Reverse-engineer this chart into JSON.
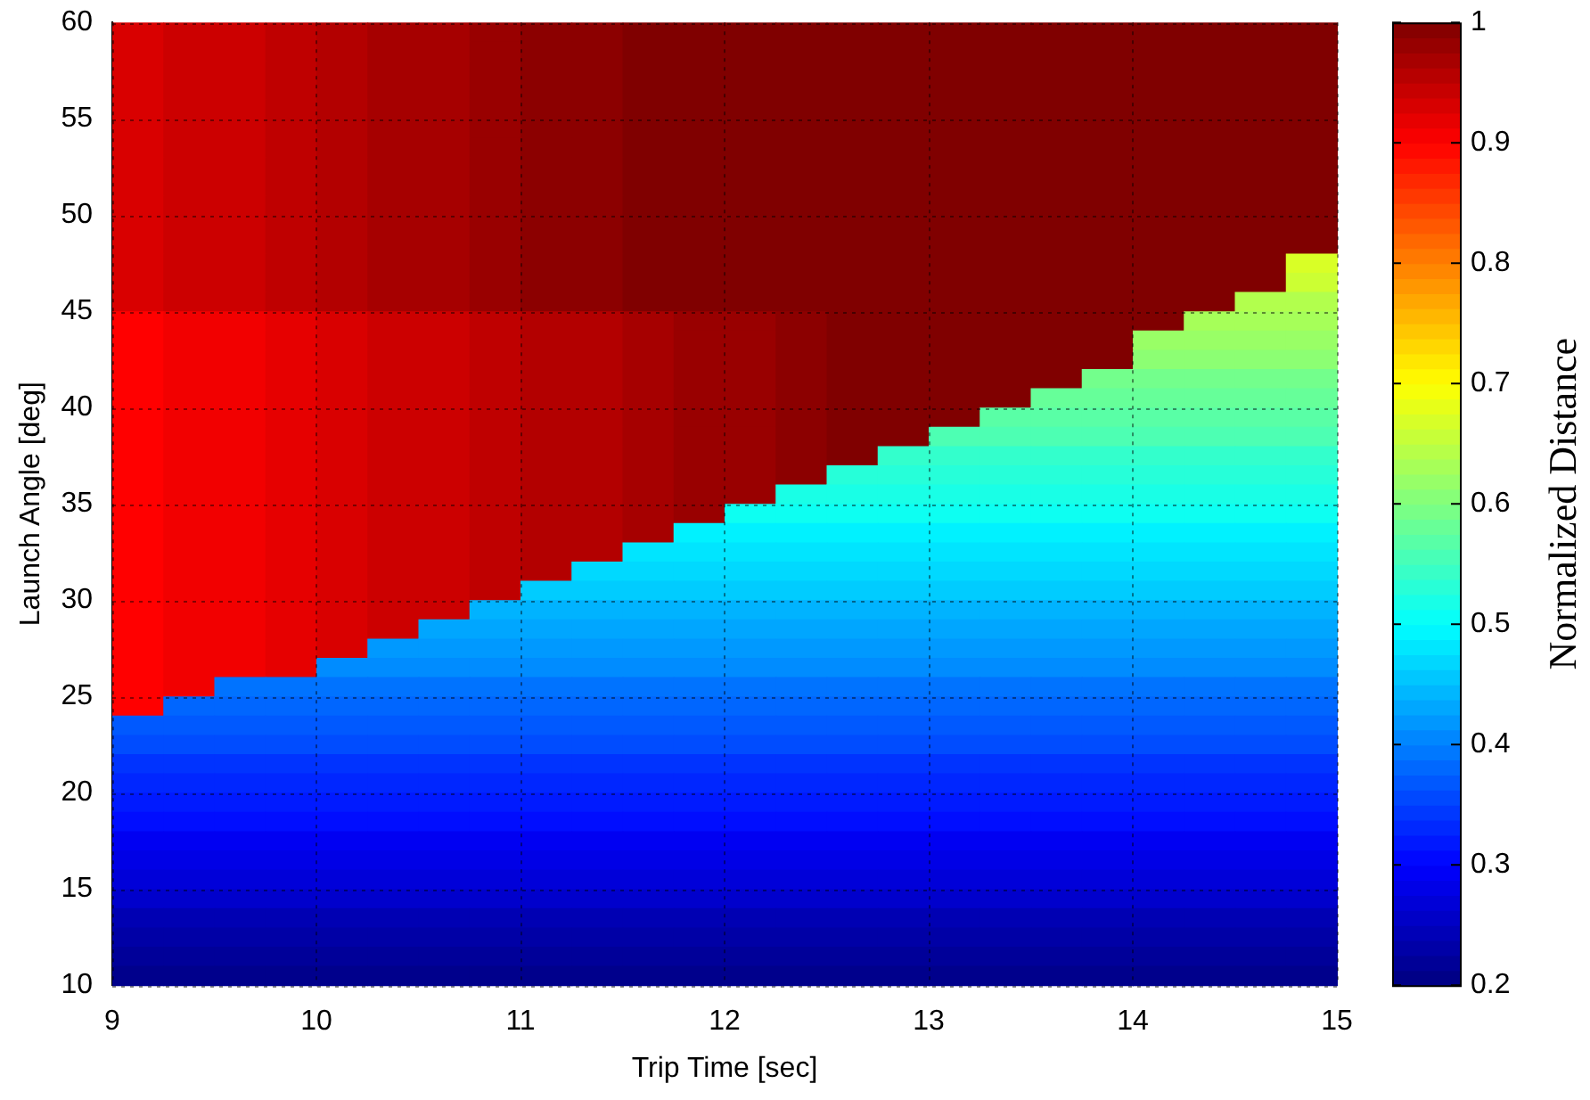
{
  "chart_data": {
    "type": "heatmap",
    "xlabel": "Trip Time [sec]",
    "ylabel": "Launch Angle [deg]",
    "clabel": "Normalized Distance",
    "x": [
      9.125,
      9.375,
      9.625,
      9.875,
      10.125,
      10.375,
      10.625,
      10.875,
      11.125,
      11.375,
      11.625,
      11.875,
      12.125,
      12.375,
      12.625,
      12.875,
      13.125,
      13.375,
      13.625,
      13.875,
      14.125,
      14.375,
      14.625,
      14.875
    ],
    "y": [
      59.5,
      58.5,
      57.5,
      56.5,
      55.5,
      54.5,
      53.5,
      52.5,
      51.5,
      50.5,
      49.5,
      48.5,
      47.5,
      46.5,
      45.5,
      44.5,
      43.5,
      42.5,
      41.5,
      40.5,
      39.5,
      38.5,
      37.5,
      36.5,
      35.5,
      34.5,
      33.5,
      32.5,
      31.5,
      30.5,
      29.5,
      28.5,
      27.5,
      26.5,
      25.5,
      24.5,
      23.5,
      22.5,
      21.5,
      20.5,
      19.5,
      18.5,
      17.5,
      16.5,
      15.5,
      14.5,
      13.5,
      12.5,
      11.5,
      10.5
    ],
    "cells": [
      [
        0.93,
        0.94,
        0.94,
        0.95,
        0.96,
        0.97,
        0.97,
        0.98,
        0.99,
        0.99,
        1,
        1,
        1,
        1,
        1,
        1,
        1,
        1,
        1,
        1,
        1,
        1,
        1,
        1
      ],
      [
        0.93,
        0.94,
        0.94,
        0.95,
        0.96,
        0.97,
        0.97,
        0.98,
        0.99,
        0.99,
        1,
        1,
        1,
        1,
        1,
        1,
        1,
        1,
        1,
        1,
        1,
        1,
        1,
        1
      ],
      [
        0.93,
        0.94,
        0.94,
        0.95,
        0.96,
        0.97,
        0.97,
        0.98,
        0.99,
        0.99,
        1,
        1,
        1,
        1,
        1,
        1,
        1,
        1,
        1,
        1,
        1,
        1,
        1,
        1
      ],
      [
        0.93,
        0.94,
        0.94,
        0.95,
        0.96,
        0.97,
        0.97,
        0.98,
        0.99,
        0.99,
        1,
        1,
        1,
        1,
        1,
        1,
        1,
        1,
        1,
        1,
        1,
        1,
        1,
        1
      ],
      [
        0.93,
        0.94,
        0.94,
        0.95,
        0.96,
        0.97,
        0.97,
        0.98,
        0.99,
        0.99,
        1,
        1,
        1,
        1,
        1,
        1,
        1,
        1,
        1,
        1,
        1,
        1,
        1,
        1
      ],
      [
        0.93,
        0.94,
        0.94,
        0.95,
        0.96,
        0.97,
        0.97,
        0.98,
        0.99,
        0.99,
        1,
        1,
        1,
        1,
        1,
        1,
        1,
        1,
        1,
        1,
        1,
        1,
        1,
        1
      ],
      [
        0.93,
        0.94,
        0.94,
        0.95,
        0.96,
        0.97,
        0.97,
        0.98,
        0.99,
        0.99,
        1,
        1,
        1,
        1,
        1,
        1,
        1,
        1,
        1,
        1,
        1,
        1,
        1,
        1
      ],
      [
        0.93,
        0.94,
        0.94,
        0.95,
        0.96,
        0.97,
        0.97,
        0.98,
        0.99,
        0.99,
        1,
        1,
        1,
        1,
        1,
        1,
        1,
        1,
        1,
        1,
        1,
        1,
        1,
        1
      ],
      [
        0.93,
        0.94,
        0.94,
        0.95,
        0.96,
        0.97,
        0.97,
        0.98,
        0.99,
        0.99,
        1,
        1,
        1,
        1,
        1,
        1,
        1,
        1,
        1,
        1,
        1,
        1,
        1,
        1
      ],
      [
        0.93,
        0.94,
        0.94,
        0.95,
        0.96,
        0.97,
        0.97,
        0.98,
        0.99,
        0.99,
        1,
        1,
        1,
        1,
        1,
        1,
        1,
        1,
        1,
        1,
        1,
        1,
        1,
        1
      ],
      [
        0.93,
        0.94,
        0.94,
        0.95,
        0.96,
        0.97,
        0.97,
        0.98,
        0.99,
        0.99,
        1,
        1,
        1,
        1,
        1,
        1,
        1,
        1,
        1,
        1,
        1,
        1,
        1,
        1
      ],
      [
        0.93,
        0.94,
        0.94,
        0.95,
        0.96,
        0.97,
        0.97,
        0.98,
        0.99,
        0.99,
        1,
        1,
        1,
        1,
        1,
        1,
        1,
        1,
        1,
        1,
        1,
        1,
        1,
        1
      ],
      [
        0.93,
        0.94,
        0.94,
        0.95,
        0.96,
        0.97,
        0.97,
        0.98,
        0.99,
        0.99,
        1,
        1,
        1,
        1,
        1,
        1,
        1,
        1,
        1,
        1,
        1,
        1,
        1,
        0.67
      ],
      [
        0.93,
        0.94,
        0.94,
        0.95,
        0.96,
        0.97,
        0.97,
        0.98,
        0.99,
        0.99,
        1,
        1,
        1,
        1,
        1,
        1,
        1,
        1,
        1,
        1,
        1,
        1,
        1,
        0.66
      ],
      [
        0.93,
        0.94,
        0.94,
        0.95,
        0.96,
        0.97,
        0.97,
        0.98,
        0.99,
        0.99,
        1,
        1,
        1,
        1,
        1,
        1,
        1,
        1,
        1,
        1,
        1,
        1,
        0.64,
        0.64
      ],
      [
        0.9,
        0.91,
        0.91,
        0.92,
        0.93,
        0.94,
        0.94,
        0.95,
        0.96,
        0.96,
        0.97,
        0.98,
        0.98,
        0.99,
        1,
        1,
        1,
        1,
        1,
        1,
        1,
        0.63,
        0.63,
        0.63
      ],
      [
        0.9,
        0.91,
        0.91,
        0.92,
        0.93,
        0.94,
        0.94,
        0.95,
        0.96,
        0.96,
        0.97,
        0.98,
        0.98,
        0.99,
        1,
        1,
        1,
        1,
        1,
        1,
        0.62,
        0.62,
        0.62,
        0.62
      ],
      [
        0.9,
        0.91,
        0.91,
        0.92,
        0.93,
        0.94,
        0.94,
        0.95,
        0.96,
        0.96,
        0.97,
        0.98,
        0.98,
        0.99,
        1,
        1,
        1,
        1,
        1,
        1,
        0.61,
        0.61,
        0.61,
        0.61
      ],
      [
        0.9,
        0.91,
        0.91,
        0.92,
        0.93,
        0.94,
        0.94,
        0.95,
        0.96,
        0.96,
        0.97,
        0.98,
        0.98,
        0.99,
        1,
        1,
        1,
        1,
        1,
        0.59,
        0.59,
        0.59,
        0.59,
        0.59
      ],
      [
        0.9,
        0.91,
        0.91,
        0.92,
        0.93,
        0.94,
        0.94,
        0.95,
        0.96,
        0.96,
        0.97,
        0.98,
        0.98,
        0.99,
        1,
        1,
        1,
        1,
        0.58,
        0.58,
        0.58,
        0.58,
        0.58,
        0.58
      ],
      [
        0.9,
        0.91,
        0.91,
        0.92,
        0.93,
        0.94,
        0.94,
        0.95,
        0.96,
        0.96,
        0.97,
        0.98,
        0.98,
        0.99,
        1,
        1,
        1,
        0.57,
        0.57,
        0.57,
        0.57,
        0.57,
        0.57,
        0.57
      ],
      [
        0.9,
        0.91,
        0.91,
        0.92,
        0.93,
        0.94,
        0.94,
        0.95,
        0.96,
        0.96,
        0.97,
        0.98,
        0.98,
        0.99,
        1,
        1,
        0.56,
        0.56,
        0.56,
        0.56,
        0.56,
        0.56,
        0.56,
        0.56
      ],
      [
        0.9,
        0.91,
        0.91,
        0.92,
        0.93,
        0.94,
        0.94,
        0.95,
        0.96,
        0.96,
        0.97,
        0.98,
        0.98,
        0.99,
        1,
        0.54,
        0.54,
        0.54,
        0.54,
        0.54,
        0.54,
        0.54,
        0.54,
        0.54
      ],
      [
        0.9,
        0.91,
        0.91,
        0.92,
        0.93,
        0.94,
        0.94,
        0.95,
        0.96,
        0.96,
        0.97,
        0.98,
        0.98,
        0.99,
        0.53,
        0.53,
        0.53,
        0.53,
        0.53,
        0.53,
        0.53,
        0.53,
        0.53,
        0.53
      ],
      [
        0.9,
        0.91,
        0.91,
        0.92,
        0.93,
        0.94,
        0.94,
        0.95,
        0.96,
        0.96,
        0.97,
        0.98,
        0.98,
        0.52,
        0.52,
        0.52,
        0.52,
        0.52,
        0.52,
        0.52,
        0.52,
        0.52,
        0.52,
        0.52
      ],
      [
        0.9,
        0.91,
        0.91,
        0.92,
        0.93,
        0.94,
        0.94,
        0.95,
        0.96,
        0.96,
        0.97,
        0.98,
        0.51,
        0.51,
        0.51,
        0.51,
        0.51,
        0.51,
        0.51,
        0.51,
        0.51,
        0.51,
        0.51,
        0.51
      ],
      [
        0.9,
        0.91,
        0.91,
        0.92,
        0.93,
        0.94,
        0.94,
        0.95,
        0.96,
        0.96,
        0.97,
        0.49,
        0.49,
        0.49,
        0.49,
        0.49,
        0.49,
        0.49,
        0.49,
        0.49,
        0.49,
        0.49,
        0.49,
        0.49
      ],
      [
        0.9,
        0.91,
        0.91,
        0.92,
        0.93,
        0.94,
        0.94,
        0.95,
        0.96,
        0.96,
        0.48,
        0.48,
        0.48,
        0.48,
        0.48,
        0.48,
        0.48,
        0.48,
        0.48,
        0.48,
        0.48,
        0.48,
        0.48,
        0.48
      ],
      [
        0.9,
        0.91,
        0.91,
        0.92,
        0.93,
        0.94,
        0.94,
        0.95,
        0.96,
        0.47,
        0.47,
        0.47,
        0.47,
        0.47,
        0.47,
        0.47,
        0.47,
        0.47,
        0.47,
        0.47,
        0.47,
        0.47,
        0.47,
        0.47
      ],
      [
        0.9,
        0.91,
        0.91,
        0.92,
        0.93,
        0.94,
        0.94,
        0.95,
        0.46,
        0.46,
        0.46,
        0.46,
        0.46,
        0.46,
        0.46,
        0.46,
        0.46,
        0.46,
        0.46,
        0.46,
        0.46,
        0.46,
        0.46,
        0.46
      ],
      [
        0.9,
        0.91,
        0.91,
        0.92,
        0.93,
        0.94,
        0.94,
        0.44,
        0.44,
        0.44,
        0.44,
        0.44,
        0.44,
        0.44,
        0.44,
        0.44,
        0.44,
        0.44,
        0.44,
        0.44,
        0.44,
        0.44,
        0.44,
        0.44
      ],
      [
        0.9,
        0.91,
        0.91,
        0.92,
        0.93,
        0.94,
        0.43,
        0.43,
        0.43,
        0.43,
        0.43,
        0.43,
        0.43,
        0.43,
        0.43,
        0.43,
        0.43,
        0.43,
        0.43,
        0.43,
        0.43,
        0.43,
        0.43,
        0.43
      ],
      [
        0.9,
        0.91,
        0.91,
        0.92,
        0.93,
        0.42,
        0.42,
        0.42,
        0.42,
        0.42,
        0.42,
        0.42,
        0.42,
        0.42,
        0.42,
        0.42,
        0.42,
        0.42,
        0.42,
        0.42,
        0.42,
        0.42,
        0.42,
        0.42
      ],
      [
        0.9,
        0.91,
        0.91,
        0.92,
        0.41,
        0.41,
        0.41,
        0.41,
        0.41,
        0.41,
        0.41,
        0.41,
        0.41,
        0.41,
        0.41,
        0.41,
        0.41,
        0.41,
        0.41,
        0.41,
        0.41,
        0.41,
        0.41,
        0.41
      ],
      [
        0.9,
        0.91,
        0.39,
        0.39,
        0.39,
        0.39,
        0.39,
        0.39,
        0.39,
        0.39,
        0.39,
        0.39,
        0.39,
        0.39,
        0.39,
        0.39,
        0.39,
        0.39,
        0.39,
        0.39,
        0.39,
        0.39,
        0.39,
        0.39
      ],
      [
        0.9,
        0.38,
        0.38,
        0.38,
        0.38,
        0.38,
        0.38,
        0.38,
        0.38,
        0.38,
        0.38,
        0.38,
        0.38,
        0.38,
        0.38,
        0.38,
        0.38,
        0.38,
        0.38,
        0.38,
        0.38,
        0.38,
        0.38,
        0.38
      ],
      [
        0.37,
        0.37,
        0.37,
        0.37,
        0.37,
        0.37,
        0.37,
        0.37,
        0.37,
        0.37,
        0.37,
        0.37,
        0.37,
        0.37,
        0.37,
        0.37,
        0.37,
        0.37,
        0.37,
        0.37,
        0.37,
        0.37,
        0.37,
        0.37
      ],
      [
        0.36,
        0.36,
        0.36,
        0.36,
        0.36,
        0.36,
        0.36,
        0.36,
        0.36,
        0.36,
        0.36,
        0.36,
        0.36,
        0.36,
        0.36,
        0.36,
        0.36,
        0.36,
        0.36,
        0.36,
        0.36,
        0.36,
        0.36,
        0.36
      ],
      [
        0.34,
        0.34,
        0.34,
        0.34,
        0.34,
        0.34,
        0.34,
        0.34,
        0.34,
        0.34,
        0.34,
        0.34,
        0.34,
        0.34,
        0.34,
        0.34,
        0.34,
        0.34,
        0.34,
        0.34,
        0.34,
        0.34,
        0.34,
        0.34
      ],
      [
        0.33,
        0.33,
        0.33,
        0.33,
        0.33,
        0.33,
        0.33,
        0.33,
        0.33,
        0.33,
        0.33,
        0.33,
        0.33,
        0.33,
        0.33,
        0.33,
        0.33,
        0.33,
        0.33,
        0.33,
        0.33,
        0.33,
        0.33,
        0.33
      ],
      [
        0.32,
        0.32,
        0.32,
        0.32,
        0.32,
        0.32,
        0.32,
        0.32,
        0.32,
        0.32,
        0.32,
        0.32,
        0.32,
        0.32,
        0.32,
        0.32,
        0.32,
        0.32,
        0.32,
        0.32,
        0.32,
        0.32,
        0.32,
        0.32
      ],
      [
        0.31,
        0.31,
        0.31,
        0.31,
        0.31,
        0.31,
        0.31,
        0.31,
        0.31,
        0.31,
        0.31,
        0.31,
        0.31,
        0.31,
        0.31,
        0.31,
        0.31,
        0.31,
        0.31,
        0.31,
        0.31,
        0.31,
        0.31,
        0.31
      ],
      [
        0.29,
        0.29,
        0.29,
        0.29,
        0.29,
        0.29,
        0.29,
        0.29,
        0.29,
        0.29,
        0.29,
        0.29,
        0.29,
        0.29,
        0.29,
        0.29,
        0.29,
        0.29,
        0.29,
        0.29,
        0.29,
        0.29,
        0.29,
        0.29
      ],
      [
        0.28,
        0.28,
        0.28,
        0.28,
        0.28,
        0.28,
        0.28,
        0.28,
        0.28,
        0.28,
        0.28,
        0.28,
        0.28,
        0.28,
        0.28,
        0.28,
        0.28,
        0.28,
        0.28,
        0.28,
        0.28,
        0.28,
        0.28,
        0.28
      ],
      [
        0.27,
        0.27,
        0.27,
        0.27,
        0.27,
        0.27,
        0.27,
        0.27,
        0.27,
        0.27,
        0.27,
        0.27,
        0.27,
        0.27,
        0.27,
        0.27,
        0.27,
        0.27,
        0.27,
        0.27,
        0.27,
        0.27,
        0.27,
        0.27
      ],
      [
        0.26,
        0.26,
        0.26,
        0.26,
        0.26,
        0.26,
        0.26,
        0.26,
        0.26,
        0.26,
        0.26,
        0.26,
        0.26,
        0.26,
        0.26,
        0.26,
        0.26,
        0.26,
        0.26,
        0.26,
        0.26,
        0.26,
        0.26,
        0.26
      ],
      [
        0.24,
        0.24,
        0.24,
        0.24,
        0.24,
        0.24,
        0.24,
        0.24,
        0.24,
        0.24,
        0.24,
        0.24,
        0.24,
        0.24,
        0.24,
        0.24,
        0.24,
        0.24,
        0.24,
        0.24,
        0.24,
        0.24,
        0.24,
        0.24
      ],
      [
        0.23,
        0.23,
        0.23,
        0.23,
        0.23,
        0.23,
        0.23,
        0.23,
        0.23,
        0.23,
        0.23,
        0.23,
        0.23,
        0.23,
        0.23,
        0.23,
        0.23,
        0.23,
        0.23,
        0.23,
        0.23,
        0.23,
        0.23,
        0.23
      ],
      [
        0.22,
        0.22,
        0.22,
        0.22,
        0.22,
        0.22,
        0.22,
        0.22,
        0.22,
        0.22,
        0.22,
        0.22,
        0.22,
        0.22,
        0.22,
        0.22,
        0.22,
        0.22,
        0.22,
        0.22,
        0.22,
        0.22,
        0.22,
        0.22
      ],
      [
        0.21,
        0.21,
        0.21,
        0.21,
        0.21,
        0.21,
        0.21,
        0.21,
        0.21,
        0.21,
        0.21,
        0.21,
        0.21,
        0.21,
        0.21,
        0.21,
        0.21,
        0.21,
        0.21,
        0.21,
        0.21,
        0.21,
        0.21,
        0.21
      ]
    ],
    "xlim": [
      9,
      15
    ],
    "xticks": [
      9,
      10,
      11,
      12,
      13,
      14,
      15
    ],
    "ylim": [
      10,
      60
    ],
    "yticks": [
      10,
      15,
      20,
      25,
      30,
      35,
      40,
      45,
      50,
      55,
      60
    ],
    "clim": [
      0.2,
      1
    ],
    "cticks": [
      0.2,
      0.3,
      0.4,
      0.5,
      0.6,
      0.7,
      0.8,
      0.9,
      1
    ],
    "grid": true
  }
}
